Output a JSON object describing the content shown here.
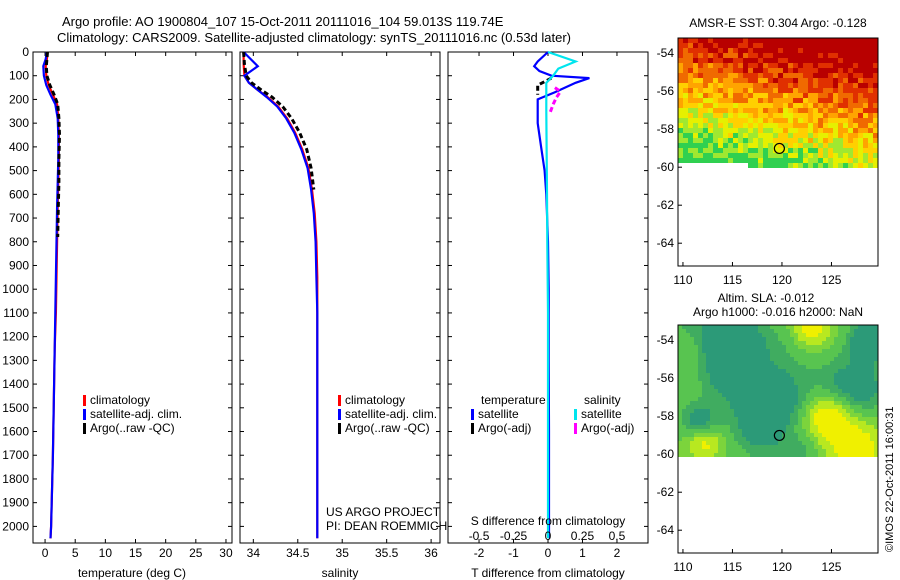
{
  "header": {
    "line1": "Argo profile: AO 1900804_107 15-Oct-2011 20111016_104 59.013S 119.74E",
    "line2": "Climatology: CARS2009. Satellite-adjusted climatology: synTS_20111016.nc (0.53d later)"
  },
  "colors": {
    "climatology": "#ff0000",
    "satellite": "#0000ff",
    "argo": "#000000",
    "sal_satellite": "#00e5ee",
    "sal_argo": "#ff00ff"
  },
  "chart_data": [
    {
      "type": "line",
      "panel": "temperature",
      "xlabel": "temperature (deg C)",
      "ylabel": "",
      "xlim": [
        -2,
        31
      ],
      "ylim": [
        2070,
        0
      ],
      "y_reversed": true,
      "xticks": [
        "0",
        "5",
        "10",
        "15",
        "20",
        "25",
        "30"
      ],
      "yticks": [
        "0",
        "100",
        "200",
        "300",
        "400",
        "500",
        "600",
        "700",
        "800",
        "900",
        "1000",
        "1100",
        "1200",
        "1300",
        "1400",
        "1500",
        "1600",
        "1700",
        "1800",
        "1900",
        "2000"
      ],
      "legend": [
        "climatology",
        "satellite-adj. clim.",
        "Argo(..raw -QC)"
      ],
      "series": [
        {
          "name": "climatology",
          "x": [
            0.4,
            0.3,
            0.1,
            0.2,
            0.6,
            1.3,
            2.0,
            2.2,
            2.3,
            2.3,
            2.2,
            2.1,
            2.0,
            1.9,
            1.8,
            1.6,
            1.5,
            1.4,
            1.3,
            1.2,
            1.1,
            1.0,
            0.9
          ],
          "y": [
            0,
            30,
            60,
            100,
            140,
            180,
            220,
            280,
            350,
            450,
            550,
            650,
            800,
            950,
            1100,
            1250,
            1400,
            1550,
            1700,
            1800,
            1900,
            2000,
            2050
          ]
        },
        {
          "name": "satellite-adj. clim.",
          "x": [
            0.3,
            0.1,
            -0.3,
            -0.2,
            0.2,
            0.9,
            1.7,
            2.1,
            2.2,
            2.2,
            2.1,
            2.0,
            1.9,
            1.8,
            1.7,
            1.6,
            1.5,
            1.4,
            1.3,
            1.2,
            1.1,
            1.0,
            0.9
          ],
          "y": [
            0,
            30,
            60,
            100,
            140,
            180,
            220,
            280,
            350,
            450,
            550,
            650,
            800,
            950,
            1100,
            1250,
            1400,
            1550,
            1700,
            1800,
            1900,
            2000,
            2050
          ]
        },
        {
          "name": "Argo(..raw -QC)",
          "x": [
            0.4,
            0.3,
            0.2,
            0.3,
            0.8,
            1.5,
            2.1,
            2.3,
            2.4,
            2.3,
            2.3,
            2.2,
            2.1
          ],
          "y": [
            0,
            30,
            60,
            100,
            140,
            180,
            220,
            280,
            350,
            450,
            550,
            650,
            780
          ]
        }
      ]
    },
    {
      "type": "line",
      "panel": "salinity",
      "xlabel": "salinity",
      "ylabel": "",
      "xlim": [
        33.85,
        36.1
      ],
      "ylim": [
        2070,
        0
      ],
      "y_reversed": true,
      "xticks": [
        "34",
        "34.5",
        "35",
        "35.5",
        "36"
      ],
      "legend": [
        "climatology",
        "satellite-adj. clim.",
        "Argo(..raw -QC)"
      ],
      "annotation": [
        "US ARGO PROJECT",
        "PI: DEAN ROEMMICH"
      ],
      "series": [
        {
          "name": "climatology",
          "x": [
            33.89,
            33.89,
            33.9,
            33.95,
            34.05,
            34.16,
            34.28,
            34.38,
            34.47,
            34.55,
            34.62,
            34.66,
            34.69,
            34.71,
            34.72,
            34.72,
            34.72,
            34.72,
            34.72,
            34.72,
            34.72
          ],
          "y": [
            0,
            50,
            100,
            130,
            160,
            190,
            230,
            280,
            340,
            410,
            490,
            580,
            680,
            800,
            950,
            1100,
            1300,
            1500,
            1700,
            1900,
            2050
          ]
        },
        {
          "name": "satellite-adj. clim.",
          "x": [
            33.89,
            34.05,
            33.9,
            33.95,
            34.05,
            34.15,
            34.27,
            34.37,
            34.46,
            34.54,
            34.61,
            34.65,
            34.68,
            34.7,
            34.71,
            34.72,
            34.72,
            34.72,
            34.72,
            34.72,
            34.72
          ],
          "y": [
            0,
            60,
            100,
            130,
            160,
            190,
            230,
            280,
            340,
            410,
            490,
            580,
            680,
            800,
            950,
            1100,
            1300,
            1500,
            1700,
            1900,
            2050
          ]
        },
        {
          "name": "Argo(..raw -QC)",
          "x": [
            33.89,
            33.9,
            33.92,
            33.98,
            34.09,
            34.21,
            34.33,
            34.43,
            34.52,
            34.6,
            34.65,
            34.68
          ],
          "y": [
            0,
            50,
            100,
            130,
            160,
            190,
            230,
            280,
            340,
            410,
            490,
            580
          ]
        }
      ]
    },
    {
      "type": "line",
      "panel": "difference",
      "xlabel": "T difference from climatology",
      "xlabel_top": "S difference from climatology",
      "xlim": [
        -2.9,
        2.9
      ],
      "ylim": [
        2070,
        0
      ],
      "y_reversed": true,
      "xticks": [
        "-2",
        "-1",
        "0",
        "1",
        "2"
      ],
      "xticks_top": [
        "-0.5",
        "-0.25",
        "0",
        "0.25",
        "0.5"
      ],
      "legend_temperature_title": "temperature",
      "legend_salinity_title": "salinity",
      "legend": [
        "satellite",
        "Argo(-adj)",
        "satellite",
        "Argo(-adj)"
      ],
      "series": [
        {
          "name": "satellite",
          "variable": "temperature",
          "x": [
            0,
            -0.3,
            -0.4,
            -0.25,
            0.1,
            1.2,
            0.8,
            0.2,
            -0.3,
            -0.3,
            -0.2,
            -0.1,
            -0.05,
            0,
            0.02,
            0.02,
            0.03,
            0.03,
            0.03
          ],
          "y": [
            0,
            40,
            60,
            80,
            100,
            110,
            130,
            170,
            200,
            300,
            400,
            500,
            600,
            800,
            1000,
            1300,
            1600,
            1900,
            2050
          ]
        },
        {
          "name": "Argo(-adj)",
          "variable": "temperature",
          "x": [
            0.1,
            -0.3,
            -0.3,
            -0.3
          ],
          "y": [
            110,
            140,
            160,
            180
          ]
        },
        {
          "name": "satellite",
          "variable": "salinity",
          "x": [
            0,
            0.8,
            0.3,
            0.15,
            -0.05,
            -0.05,
            -0.04,
            -0.03,
            -0.02,
            0,
            0,
            0,
            0
          ],
          "y": [
            0,
            40,
            70,
            100,
            130,
            250,
            400,
            600,
            800,
            1100,
            1500,
            1900,
            2050
          ]
        },
        {
          "name": "Argo(-adj)",
          "variable": "salinity",
          "x": [
            0.2,
            0.3,
            0.35,
            0.25,
            0.15,
            0.05
          ],
          "y": [
            150,
            160,
            170,
            190,
            220,
            260
          ]
        }
      ]
    },
    {
      "type": "heatmap",
      "panel": "sst_map",
      "title": "AMSR-E SST: 0.304 Argo: -0.128",
      "xticks": [
        "110",
        "115",
        "120",
        "125"
      ],
      "yticks": [
        "-54",
        "-56",
        "-58",
        "-60",
        "-62",
        "-64"
      ],
      "xlim": [
        109.5,
        129.7
      ],
      "ylim": [
        -65.2,
        -53.2
      ],
      "marker": {
        "lon": 119.74,
        "lat": -59.013
      }
    },
    {
      "type": "heatmap",
      "panel": "sla_map",
      "title": "Altim. SLA: -0.012",
      "subtitle": "Argo h1000: -0.016 h2000: NaN",
      "xticks": [
        "110",
        "115",
        "120",
        "125"
      ],
      "yticks": [
        "-54",
        "-56",
        "-58",
        "-60",
        "-62",
        "-64"
      ],
      "xlim": [
        109.5,
        129.7
      ],
      "ylim": [
        -65.2,
        -53.2
      ],
      "marker": {
        "lon": 119.74,
        "lat": -59.013
      }
    }
  ],
  "footer": {
    "stamp": "©IMOS 22-Oct-2011 16:00:31"
  }
}
